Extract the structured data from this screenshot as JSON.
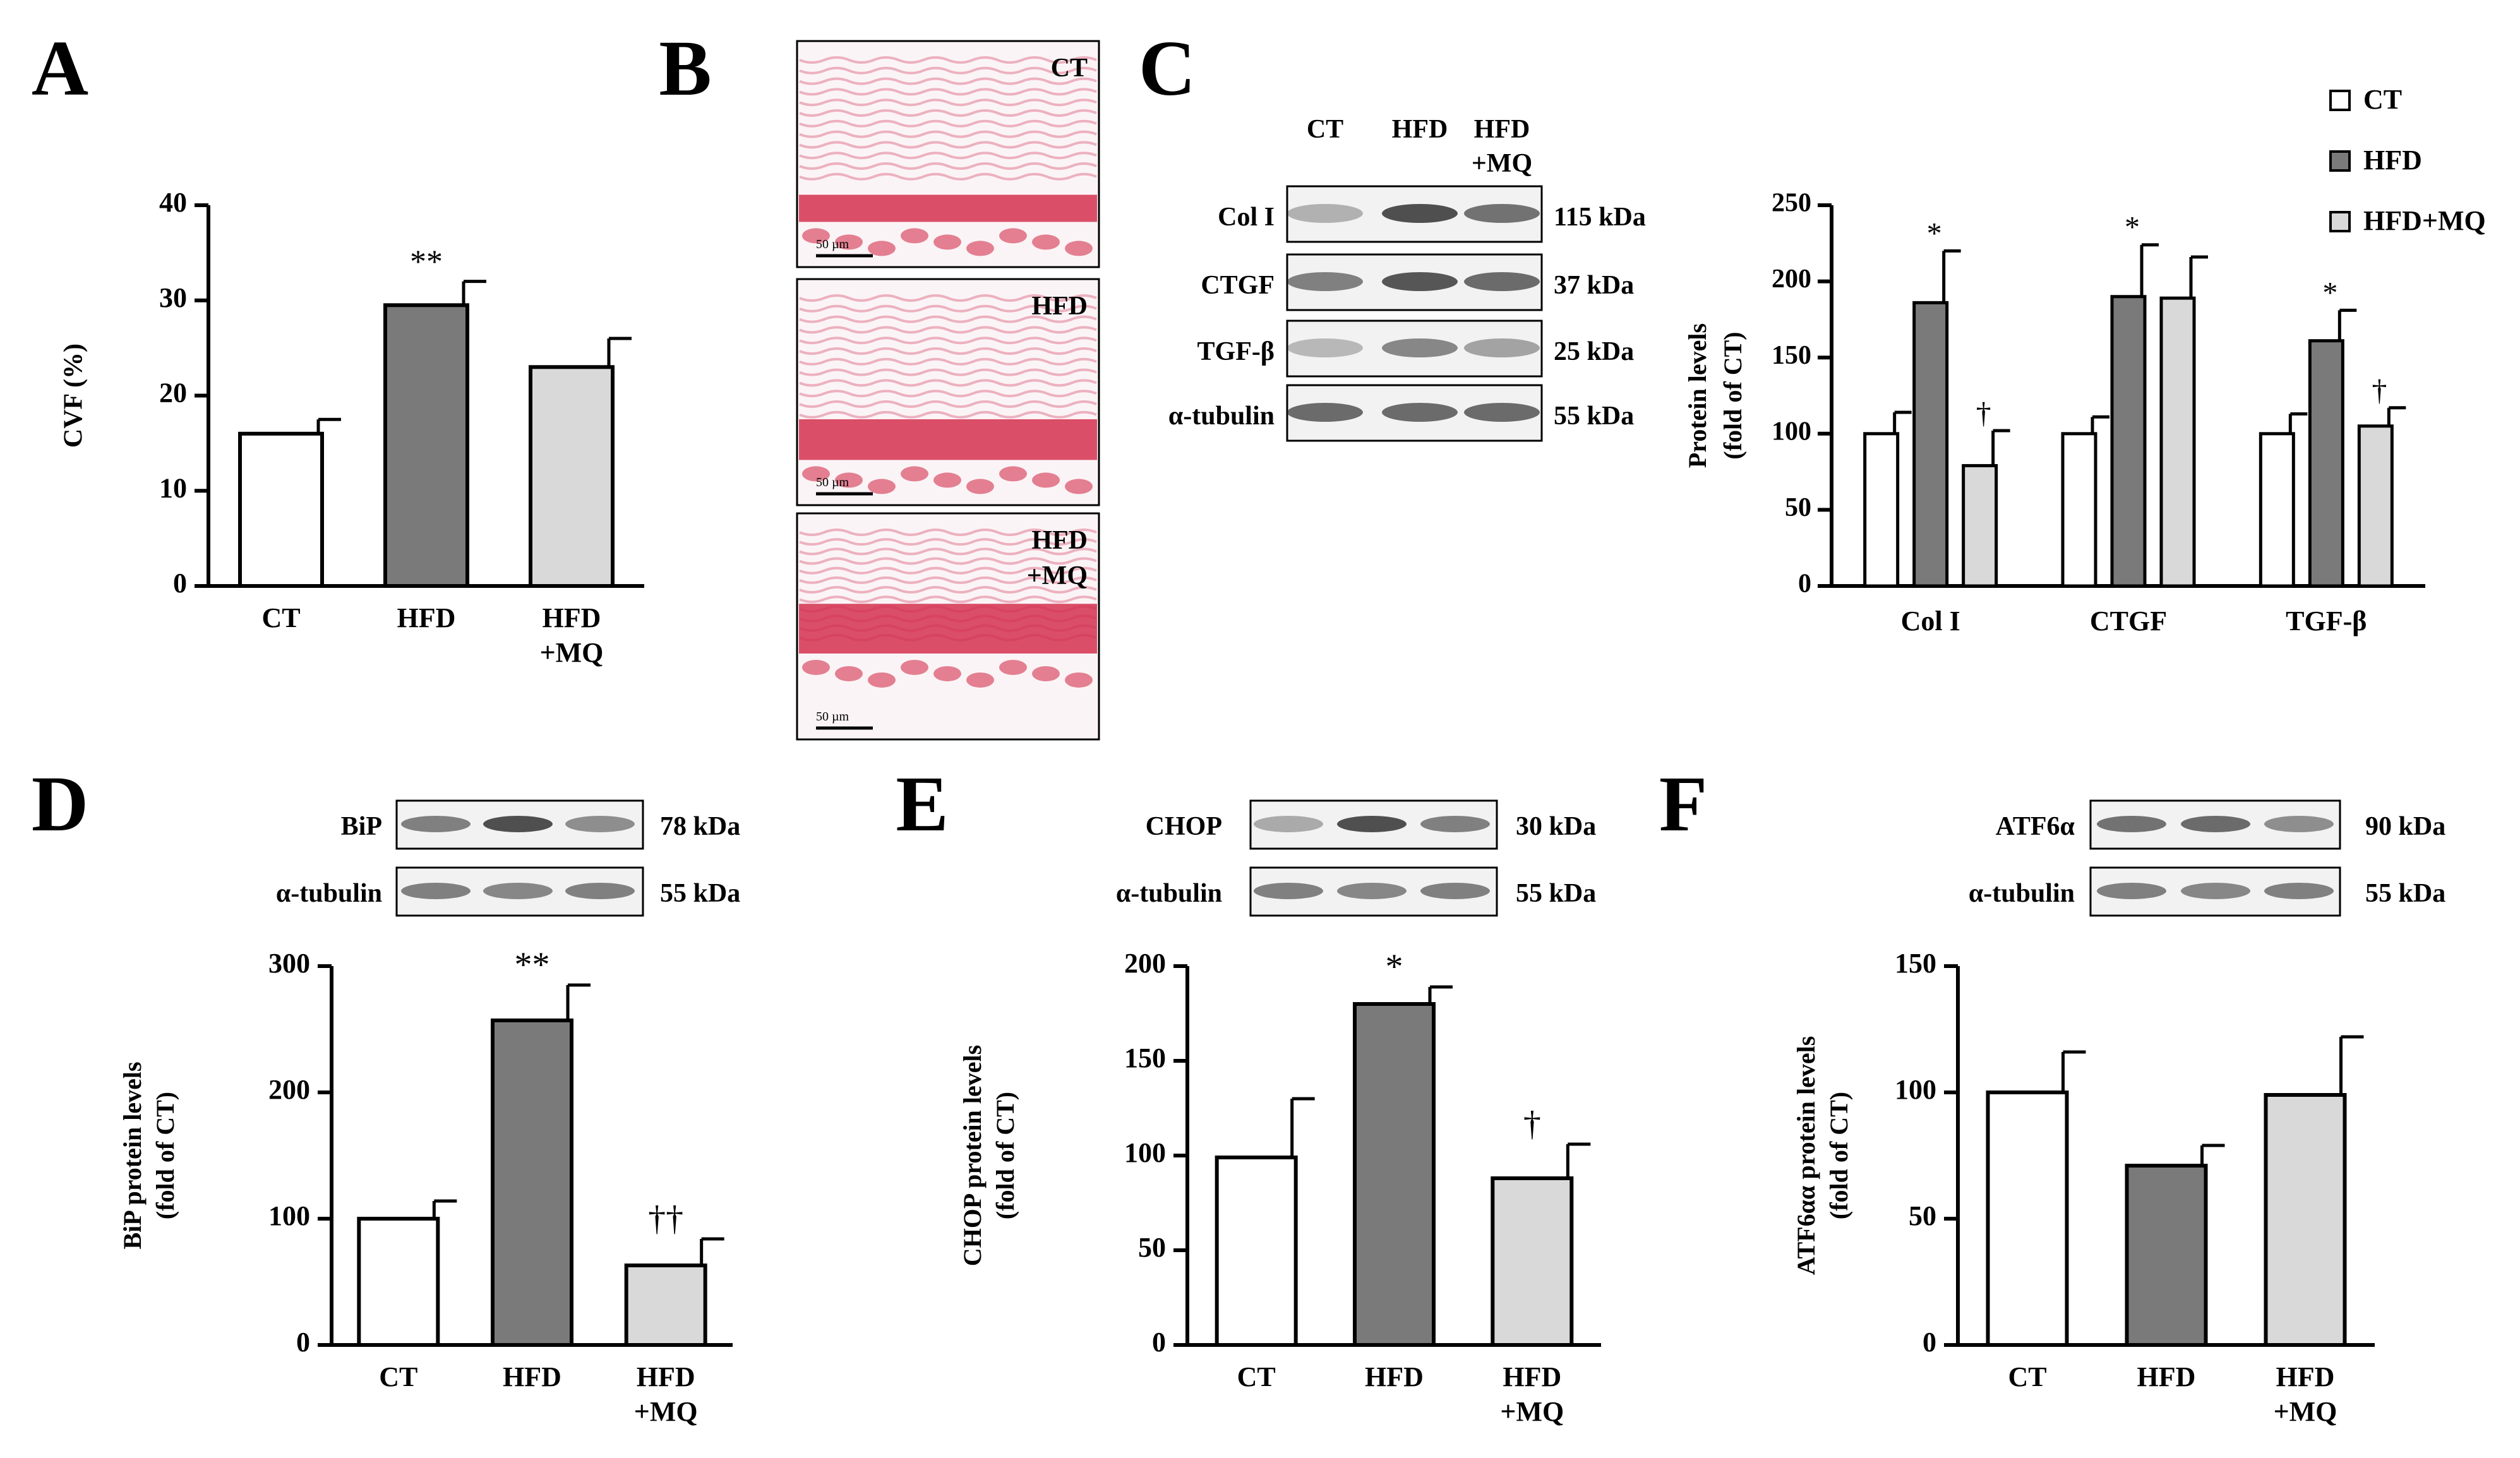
{
  "colors": {
    "ct": "#ffffff",
    "hfd": "#7a7a7a",
    "hfd_mq": "#d9d9d9",
    "stroke": "#000000",
    "histo": "#d4304f"
  },
  "panels": {
    "A": {
      "letter": "A"
    },
    "B": {
      "letter": "B",
      "images": [
        {
          "label": "CT",
          "scale": "50 µm"
        },
        {
          "label": "HFD",
          "scale": "50 µm"
        },
        {
          "label": "HFD",
          "label2": "+MQ",
          "scale": "50 µm"
        }
      ]
    },
    "C": {
      "letter": "C",
      "blot": {
        "lanes": [
          {
            "l1": "CT",
            "l2": ""
          },
          {
            "l1": "HFD",
            "l2": ""
          },
          {
            "l1": "HFD",
            "l2": "+MQ"
          }
        ],
        "rows": [
          {
            "name": "Col I",
            "kda": "115 kDa"
          },
          {
            "name": "CTGF",
            "kda": "37 kDa"
          },
          {
            "name": "TGF-β",
            "kda": "25 kDa"
          },
          {
            "name": "α-tubulin",
            "kda": "55 kDa"
          }
        ]
      },
      "legend": [
        "CT",
        "HFD",
        "HFD+MQ"
      ]
    },
    "D": {
      "letter": "D",
      "blot": [
        {
          "name": "BiP",
          "kda": "78 kDa"
        },
        {
          "name": "α-tubulin",
          "kda": "55 kDa"
        }
      ]
    },
    "E": {
      "letter": "E",
      "blot": [
        {
          "name": "CHOP",
          "kda": "30 kDa"
        },
        {
          "name": "α-tubulin",
          "kda": "55 kDa"
        }
      ]
    },
    "F": {
      "letter": "F",
      "blot": [
        {
          "name": "ATF6α",
          "kda": "90 kDa"
        },
        {
          "name": "α-tubulin",
          "kda": "55 kDa"
        }
      ]
    }
  },
  "chart_data": [
    {
      "panel": "A",
      "type": "bar",
      "ylabel": "CVF (%)",
      "ylim": [
        0,
        40
      ],
      "ticks": [
        0,
        10,
        20,
        30,
        40
      ],
      "categories": [
        {
          "l1": "CT",
          "l2": ""
        },
        {
          "l1": "HFD",
          "l2": ""
        },
        {
          "l1": "HFD",
          "l2": "+MQ"
        }
      ],
      "values": [
        16,
        29.5,
        23
      ],
      "errors": [
        1.5,
        2.5,
        3
      ],
      "annotations": [
        "",
        "**",
        ""
      ]
    },
    {
      "panel": "C",
      "type": "bar",
      "ylabel": "Protein levels",
      "ylabel2": "(fold of CT)",
      "ylim": [
        0,
        250
      ],
      "ticks": [
        0,
        50,
        100,
        150,
        200,
        250
      ],
      "categories": [
        "Col I",
        "CTGF",
        "TGF-β"
      ],
      "series": [
        {
          "name": "CT",
          "values": [
            100,
            100,
            100
          ],
          "errors": [
            14,
            11,
            13
          ],
          "annotations": [
            "",
            "",
            ""
          ]
        },
        {
          "name": "HFD",
          "values": [
            186,
            190,
            161
          ],
          "errors": [
            34,
            34,
            20
          ],
          "annotations": [
            "*",
            "*",
            "*"
          ]
        },
        {
          "name": "HFD+MQ",
          "values": [
            79,
            189,
            105
          ],
          "errors": [
            23,
            27,
            12
          ],
          "annotations": [
            "†",
            "",
            "†"
          ]
        }
      ]
    },
    {
      "panel": "D",
      "type": "bar",
      "ylabel": "BiP protein levels",
      "ylabel2": "(fold of CT)",
      "ylim": [
        0,
        300
      ],
      "ticks": [
        0,
        100,
        200,
        300
      ],
      "categories": [
        {
          "l1": "CT",
          "l2": ""
        },
        {
          "l1": "HFD",
          "l2": ""
        },
        {
          "l1": "HFD",
          "l2": "+MQ"
        }
      ],
      "values": [
        100,
        257,
        63
      ],
      "errors": [
        14,
        28,
        21
      ],
      "annotations": [
        "",
        "**",
        "††"
      ]
    },
    {
      "panel": "E",
      "type": "bar",
      "ylabel": "CHOP protein levels",
      "ylabel2": "(fold of CT)",
      "ylim": [
        0,
        200
      ],
      "ticks": [
        0,
        50,
        100,
        150,
        200
      ],
      "categories": [
        {
          "l1": "CT",
          "l2": ""
        },
        {
          "l1": "HFD",
          "l2": ""
        },
        {
          "l1": "HFD",
          "l2": "+MQ"
        }
      ],
      "values": [
        99,
        180,
        88
      ],
      "errors": [
        31,
        9,
        18
      ],
      "annotations": [
        "",
        "*",
        "†"
      ]
    },
    {
      "panel": "F",
      "type": "bar",
      "ylabel": "ATF6αα protein levels",
      "ylabel2": "(fold of CT)",
      "ylim": [
        0,
        150
      ],
      "ticks": [
        0,
        50,
        100,
        150
      ],
      "categories": [
        {
          "l1": "CT",
          "l2": ""
        },
        {
          "l1": "HFD",
          "l2": ""
        },
        {
          "l1": "HFD",
          "l2": "+MQ"
        }
      ],
      "values": [
        100,
        71,
        99
      ],
      "errors": [
        16,
        8,
        23
      ],
      "annotations": [
        "",
        "",
        ""
      ]
    }
  ]
}
